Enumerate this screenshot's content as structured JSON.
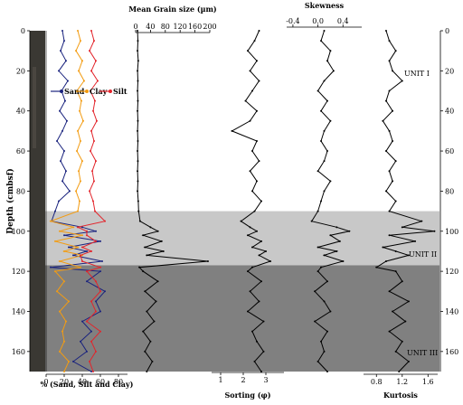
{
  "chart_data": [
    {
      "type": "line",
      "xlabel": "% (Sand, Silt and Clay)",
      "ylabel": "Depth (cmbsf)",
      "xlim": [
        0,
        90
      ],
      "xticks": [
        "0",
        "20",
        "40",
        "60",
        "80"
      ],
      "ylim": [
        0,
        170
      ],
      "yticks": [
        "0",
        "20",
        "40",
        "60",
        "80",
        "100",
        "120",
        "140",
        "160"
      ],
      "series": [
        {
          "name": "Sand",
          "color": "#1a237e",
          "depth": [
            0,
            5,
            10,
            15,
            20,
            25,
            30,
            35,
            40,
            45,
            50,
            55,
            60,
            65,
            70,
            75,
            80,
            85,
            90,
            95,
            98,
            100,
            102,
            105,
            108,
            110,
            112,
            115,
            118,
            120,
            125,
            130,
            135,
            140,
            145,
            150,
            155,
            160,
            165,
            170
          ],
          "values": [
            18,
            20,
            16,
            22,
            14,
            24,
            17,
            21,
            15,
            23,
            18,
            12,
            20,
            16,
            22,
            18,
            26,
            14,
            10,
            6,
            40,
            55,
            20,
            60,
            25,
            45,
            30,
            62,
            5,
            60,
            45,
            65,
            55,
            60,
            40,
            50,
            38,
            45,
            30,
            50
          ]
        },
        {
          "name": "Clay",
          "color": "#f39c12",
          "depth": [
            0,
            5,
            10,
            15,
            20,
            25,
            30,
            35,
            40,
            45,
            50,
            55,
            60,
            65,
            70,
            75,
            80,
            85,
            90,
            95,
            98,
            100,
            102,
            105,
            108,
            110,
            112,
            115,
            118,
            120,
            125,
            130,
            135,
            140,
            145,
            150,
            155,
            160,
            165,
            170
          ],
          "values": [
            35,
            38,
            33,
            40,
            36,
            42,
            34,
            39,
            37,
            41,
            35,
            38,
            34,
            40,
            36,
            38,
            33,
            37,
            35,
            5,
            30,
            15,
            40,
            10,
            35,
            20,
            40,
            15,
            38,
            10,
            20,
            12,
            25,
            15,
            22,
            18,
            20,
            15,
            25,
            20
          ]
        },
        {
          "name": "Silt",
          "color": "#e3242b",
          "depth": [
            0,
            5,
            10,
            15,
            20,
            25,
            30,
            35,
            40,
            45,
            50,
            55,
            60,
            65,
            70,
            75,
            80,
            85,
            90,
            95,
            98,
            100,
            102,
            105,
            108,
            110,
            112,
            115,
            118,
            120,
            125,
            130,
            135,
            140,
            145,
            150,
            155,
            160,
            165,
            170
          ],
          "values": [
            50,
            53,
            48,
            55,
            50,
            57,
            49,
            54,
            52,
            56,
            50,
            53,
            49,
            55,
            51,
            53,
            48,
            52,
            54,
            65,
            35,
            45,
            45,
            55,
            40,
            50,
            38,
            40,
            60,
            45,
            55,
            60,
            50,
            55,
            45,
            60,
            50,
            55,
            48,
            52
          ]
        }
      ],
      "legend": [
        "Sand",
        "Clay",
        "Silt"
      ]
    },
    {
      "type": "line",
      "title": "Mean Grain size (µm)",
      "xlim": [
        0,
        200
      ],
      "xticks": [
        "0",
        "40",
        "80",
        "120",
        "160",
        "200"
      ],
      "depth": [
        0,
        5,
        10,
        15,
        20,
        25,
        30,
        35,
        40,
        45,
        50,
        55,
        60,
        65,
        70,
        75,
        80,
        85,
        90,
        95,
        98,
        100,
        102,
        105,
        108,
        110,
        112,
        115,
        118,
        120,
        125,
        130,
        135,
        140,
        145,
        150,
        155,
        160,
        165,
        170
      ],
      "values": [
        5,
        6,
        5,
        7,
        5,
        6,
        5,
        6,
        5,
        6,
        5,
        6,
        5,
        6,
        5,
        6,
        5,
        7,
        8,
        12,
        40,
        60,
        20,
        70,
        25,
        75,
        30,
        195,
        10,
        20,
        60,
        25,
        55,
        30,
        50,
        20,
        40,
        25,
        45,
        30
      ]
    },
    {
      "type": "line",
      "xlabel": "Sorting (φ)",
      "xlim": [
        0.6,
        3.8
      ],
      "xticks": [
        "1",
        "2",
        "3"
      ],
      "depth": [
        0,
        5,
        10,
        15,
        20,
        25,
        30,
        35,
        40,
        45,
        50,
        55,
        60,
        65,
        70,
        75,
        80,
        85,
        90,
        95,
        98,
        100,
        102,
        105,
        108,
        110,
        112,
        115,
        118,
        120,
        125,
        130,
        135,
        140,
        145,
        150,
        155,
        160,
        165,
        170
      ],
      "values": [
        2.7,
        2.5,
        2.2,
        2.6,
        2.3,
        2.7,
        2.4,
        2.1,
        2.6,
        2.3,
        1.5,
        2.6,
        2.4,
        2.7,
        2.3,
        2.6,
        2.4,
        2.8,
        2.5,
        1.9,
        2.3,
        2.6,
        2.2,
        2.8,
        2.4,
        3.0,
        2.7,
        3.2,
        2.4,
        2.2,
        2.8,
        2.3,
        2.7,
        2.2,
        2.9,
        2.4,
        2.6,
        2.9,
        2.5,
        2.8
      ]
    },
    {
      "type": "line",
      "title": "Skewness",
      "xlim": [
        -0.5,
        0.7
      ],
      "xticks": [
        "-0.4",
        "0.0",
        "0.4"
      ],
      "depth": [
        0,
        5,
        10,
        15,
        20,
        25,
        30,
        35,
        40,
        45,
        50,
        55,
        60,
        65,
        70,
        75,
        80,
        85,
        90,
        95,
        98,
        100,
        102,
        105,
        108,
        110,
        112,
        115,
        118,
        120,
        125,
        130,
        135,
        140,
        145,
        150,
        155,
        160,
        165,
        170
      ],
      "values": [
        0.1,
        0.05,
        0.2,
        0.15,
        0.25,
        0.1,
        0.0,
        0.15,
        0.05,
        0.2,
        0.1,
        0.05,
        0.15,
        0.1,
        0.0,
        0.2,
        0.1,
        0.05,
        0.0,
        -0.1,
        0.3,
        0.5,
        0.2,
        0.35,
        0.0,
        0.3,
        0.1,
        0.4,
        0.05,
        0.0,
        0.15,
        -0.05,
        0.1,
        0.2,
        -0.05,
        0.15,
        0.05,
        0.1,
        0.0,
        0.15
      ]
    },
    {
      "type": "line",
      "xlabel": "Kurtosis",
      "xlim": [
        0.6,
        1.75
      ],
      "xticks": [
        "0.8",
        "1.2",
        "1.6"
      ],
      "depth": [
        0,
        5,
        10,
        15,
        20,
        25,
        30,
        35,
        40,
        45,
        50,
        55,
        60,
        65,
        70,
        75,
        80,
        85,
        90,
        95,
        98,
        100,
        102,
        105,
        108,
        110,
        112,
        115,
        118,
        120,
        125,
        130,
        135,
        140,
        145,
        150,
        155,
        160,
        165,
        170
      ],
      "values": [
        0.95,
        1.0,
        1.1,
        1.0,
        1.05,
        1.2,
        1.0,
        0.95,
        1.05,
        0.9,
        1.0,
        1.05,
        0.95,
        1.1,
        1.0,
        1.05,
        0.95,
        1.1,
        1.0,
        1.5,
        1.2,
        1.7,
        1.0,
        1.4,
        0.9,
        1.1,
        1.3,
        0.95,
        0.8,
        1.1,
        1.2,
        1.0,
        1.3,
        1.05,
        1.25,
        1.0,
        1.2,
        1.1,
        1.3,
        1.15
      ]
    }
  ],
  "units": [
    {
      "label": "UNIT I",
      "depth_from": 0,
      "depth_to": 90,
      "fill": "#ffffff"
    },
    {
      "label": "UNIT II",
      "depth_from": 90,
      "depth_to": 117,
      "fill": "#c8c8c8"
    },
    {
      "label": "UNIT III",
      "depth_from": 117,
      "depth_to": 170,
      "fill": "#808080"
    }
  ],
  "right_axis_ticks": [
    "0",
    "20",
    "40",
    "60",
    "80",
    "100",
    "120",
    "140",
    "160"
  ]
}
